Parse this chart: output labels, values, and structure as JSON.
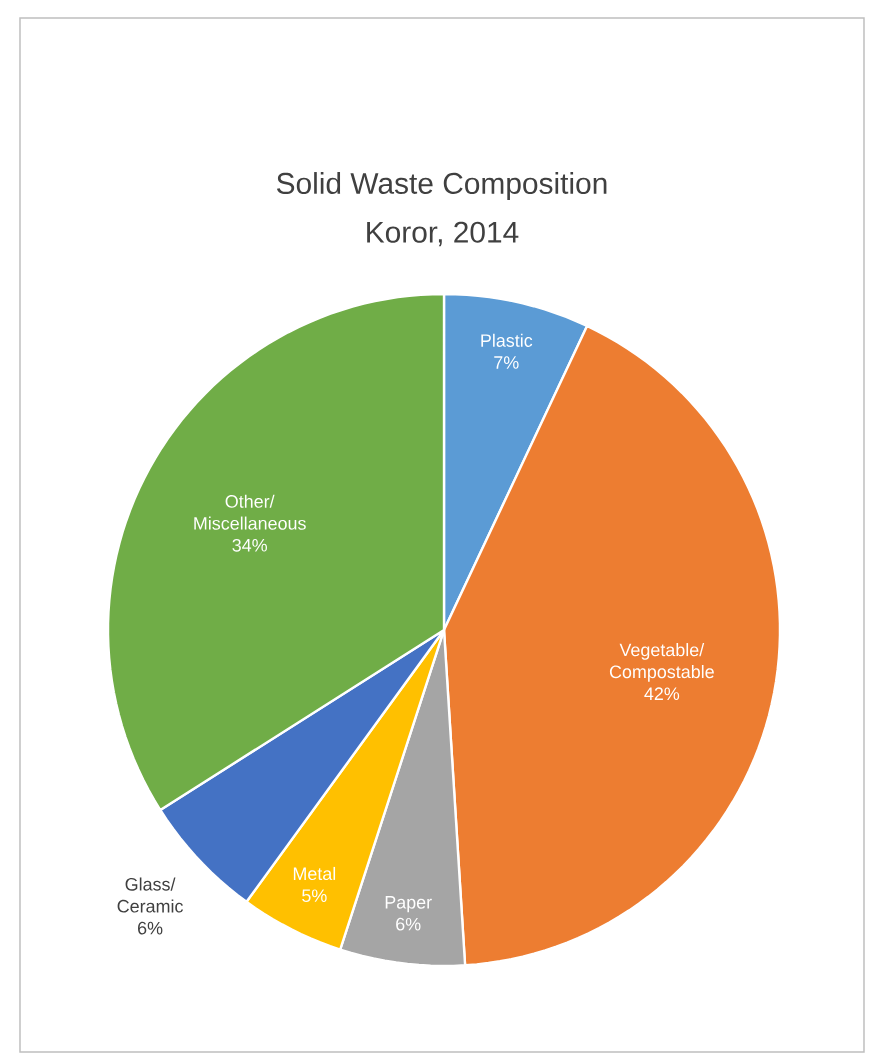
{
  "chart_data": {
    "type": "pie",
    "title": "Solid Waste Composition",
    "subtitle": "Koror, 2014",
    "categories": [
      "Plastic",
      "Vegetable/ Compostable",
      "Paper",
      "Metal",
      "Glass/ Ceramic",
      "Other/ Miscellaneous"
    ],
    "values": [
      7,
      42,
      6,
      5,
      6,
      34
    ],
    "value_labels": [
      "7%",
      "42%",
      "6%",
      "5%",
      "6%",
      "34%"
    ],
    "colors": [
      "#5b9bd5",
      "#ed7d31",
      "#a5a5a5",
      "#ffc000",
      "#4472c4",
      "#70ad47"
    ]
  }
}
